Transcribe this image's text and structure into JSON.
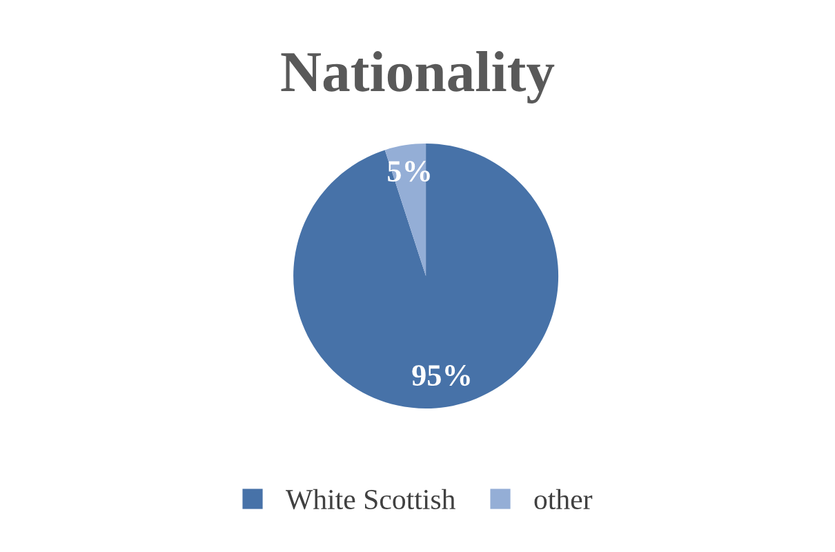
{
  "chart_data": {
    "type": "pie",
    "title": "Nationality",
    "categories": [
      "White Scottish",
      "other"
    ],
    "values": [
      95,
      5
    ],
    "colors": [
      "#4772a8",
      "#94aed6"
    ],
    "value_labels": [
      "95%",
      "5%"
    ],
    "legend": "bottom"
  }
}
